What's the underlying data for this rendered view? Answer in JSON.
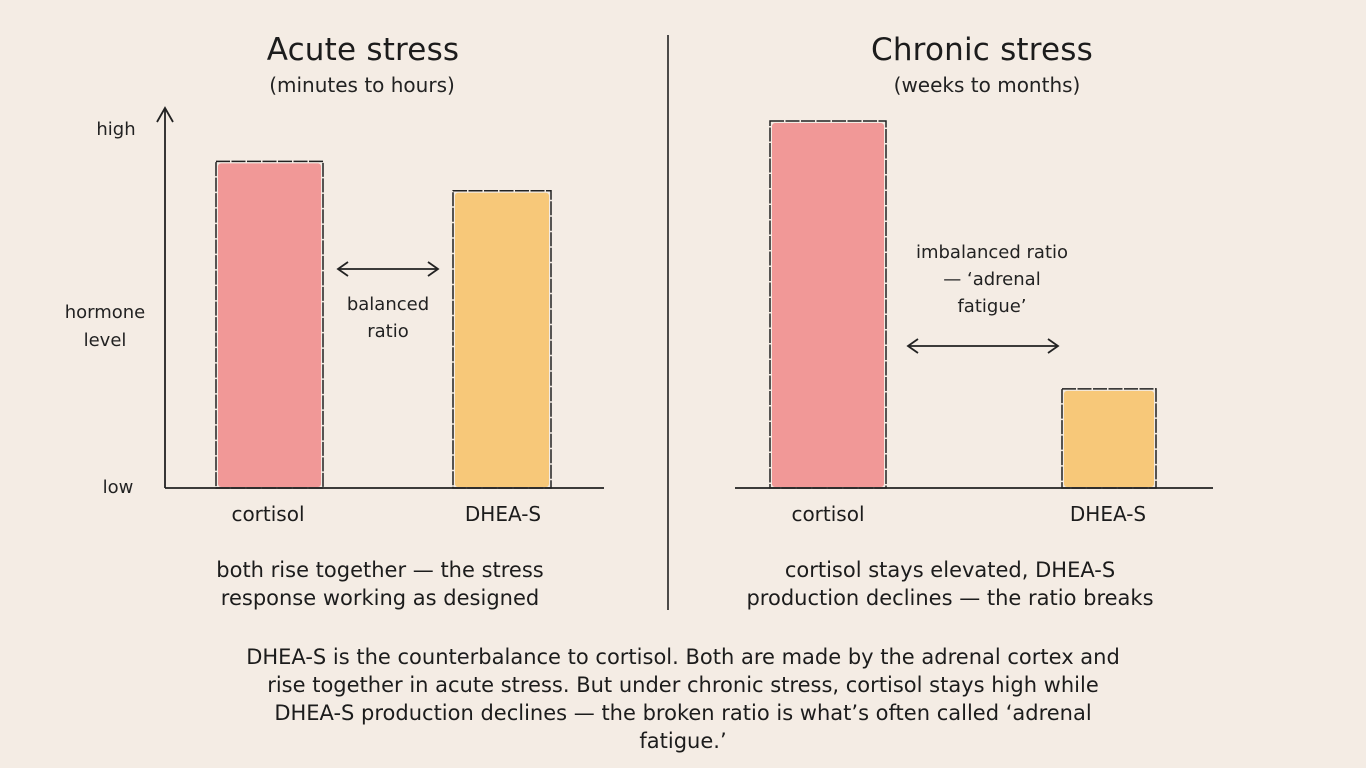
{
  "chart_data": [
    {
      "type": "bar",
      "title": "Acute stress",
      "subtitle": "(minutes to hours)",
      "ylabel": "hormone level",
      "y_tick_labels": {
        "top": "high",
        "bottom": "low"
      },
      "ylim": [
        0,
        100
      ],
      "categories": [
        "cortisol",
        "DHEA-S"
      ],
      "values": [
        89,
        81
      ],
      "colors": [
        "#f08a8a",
        "#f7c266"
      ],
      "annotation": "balanced ratio",
      "caption": "both rise together — the stress response working as designed"
    },
    {
      "type": "bar",
      "title": "Chronic stress",
      "subtitle": "(weeks to months)",
      "ylim": [
        0,
        100
      ],
      "categories": [
        "cortisol",
        "DHEA-S"
      ],
      "values": [
        100,
        27
      ],
      "colors": [
        "#f08a8a",
        "#f7c266"
      ],
      "annotation": "imbalanced ratio — ‘adrenal fatigue’",
      "caption": "cortisol stays elevated, DHEA-S production declines — the ratio breaks"
    }
  ],
  "footer_text": "DHEA-S is the counterbalance to cortisol. Both are made by the adrenal cortex and rise together in acute stress. But under chronic stress, cortisol stays high while DHEA-S production declines — the broken ratio is what’s often called ‘adrenal fatigue.’"
}
